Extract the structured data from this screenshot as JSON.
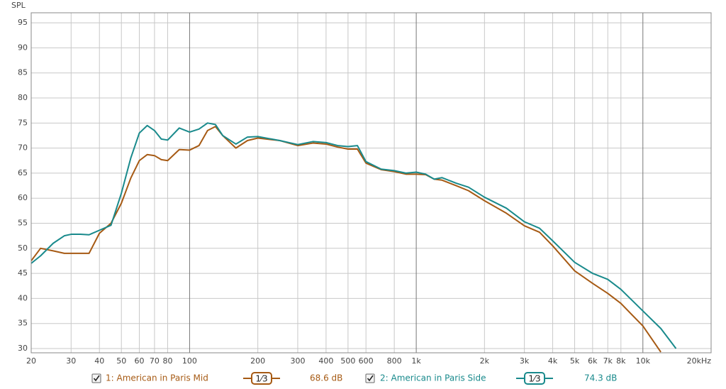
{
  "chart_data": {
    "type": "line",
    "y_label": "SPL",
    "xscale": "log",
    "grid": true,
    "x": [
      20,
      22,
      25,
      28,
      30,
      33,
      36,
      40,
      45,
      50,
      55,
      60,
      65,
      70,
      75,
      80,
      90,
      100,
      110,
      120,
      130,
      140,
      160,
      180,
      200,
      250,
      300,
      350,
      400,
      450,
      500,
      550,
      600,
      700,
      800,
      900,
      1000,
      1100,
      1200,
      1300,
      1500,
      1700,
      2000,
      2500,
      3000,
      3500,
      4000,
      5000,
      6000,
      7000,
      8000,
      10000,
      12000,
      14000
    ],
    "series": [
      {
        "name": "1: American in Paris Mid",
        "color": "#a65a14",
        "smoothing": "1⁄3",
        "level": "68.6 dB",
        "values": [
          47.5,
          50,
          49.5,
          49,
          49,
          49,
          49,
          53,
          55,
          59,
          64,
          67.5,
          68.7,
          68.5,
          67.7,
          67.5,
          69.7,
          69.6,
          70.5,
          73.5,
          74.3,
          72.5,
          70,
          71.5,
          72,
          71.5,
          70.5,
          71,
          70.8,
          70.2,
          69.8,
          69.8,
          67,
          65.7,
          65.3,
          64.8,
          64.8,
          64.7,
          63.8,
          63.6,
          62.5,
          61.5,
          59.5,
          57,
          54.5,
          53.2,
          50.5,
          45.5,
          43,
          41,
          39,
          34.5,
          29.3,
          null
        ]
      },
      {
        "name": "2: American in Paris Side",
        "color": "#198a8c",
        "smoothing": "1⁄3",
        "level": "74.3 dB",
        "values": [
          47,
          48.5,
          51,
          52.5,
          52.8,
          52.8,
          52.7,
          53.6,
          54.6,
          61,
          68,
          73,
          74.5,
          73.5,
          71.8,
          71.6,
          74,
          73.2,
          73.8,
          75,
          74.7,
          72.5,
          70.8,
          72.2,
          72.3,
          71.5,
          70.7,
          71.3,
          71.1,
          70.5,
          70.3,
          70.5,
          67.3,
          65.8,
          65.5,
          65,
          65.2,
          64.8,
          63.8,
          64.1,
          63,
          62.2,
          60.2,
          58,
          55.3,
          54,
          51.5,
          47.2,
          45,
          43.8,
          41.8,
          37.5,
          34,
          30
        ]
      }
    ],
    "xlim": [
      20,
      20000
    ],
    "ylim": [
      29.15,
      97
    ],
    "xticks": [
      20,
      30,
      40,
      50,
      60,
      70,
      80,
      100,
      200,
      300,
      400,
      500,
      600,
      800,
      {
        "value": 1000,
        "label": "1k"
      },
      {
        "value": 2000,
        "label": "2k"
      },
      {
        "value": 3000,
        "label": "3k"
      },
      {
        "value": 4000,
        "label": "4k"
      },
      {
        "value": 5000,
        "label": "5k"
      },
      {
        "value": 6000,
        "label": "6k"
      },
      {
        "value": 7000,
        "label": "7k"
      },
      {
        "value": 8000,
        "label": "8k"
      },
      {
        "value": 10000,
        "label": "10k"
      },
      {
        "value": 20000,
        "label": "20kHz"
      }
    ],
    "yticks": [
      30,
      35,
      40,
      45,
      50,
      55,
      60,
      65,
      70,
      75,
      80,
      85,
      90,
      95
    ]
  }
}
